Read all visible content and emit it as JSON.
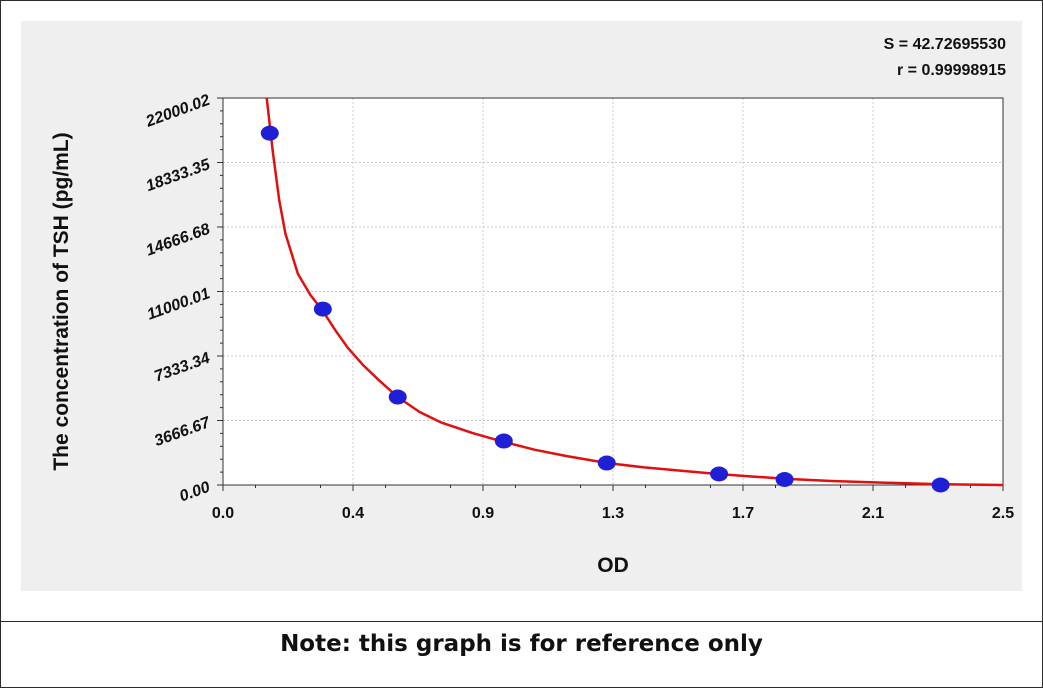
{
  "chart_data": {
    "type": "scatter",
    "xlabel": "OD",
    "ylabel": "The concentration of TSH (pg/mL)",
    "xlim": [
      0.0,
      2.5
    ],
    "ylim": [
      0.0,
      22000.02
    ],
    "x_ticks": [
      "0.0",
      "0.4",
      "0.9",
      "1.3",
      "1.7",
      "2.1",
      "2.5"
    ],
    "y_ticks": [
      "0.00",
      "3666.67",
      "7333.34",
      "11000.01",
      "14666.68",
      "18333.35",
      "22000.02"
    ],
    "grid": true,
    "annotations": [
      "S = 42.72695530",
      "r = 0.99998915"
    ],
    "series": [
      {
        "type": "scatter",
        "x": [
          0.15,
          0.32,
          0.56,
          0.9,
          1.23,
          1.59,
          1.8,
          2.3
        ],
        "y": [
          20000,
          10000,
          5000,
          2500,
          1250,
          625,
          312.5,
          0
        ],
        "color": "#1f1fd6"
      },
      {
        "type": "line",
        "x": [
          0.14,
          0.16,
          0.18,
          0.2,
          0.24,
          0.28,
          0.32,
          0.36,
          0.4,
          0.45,
          0.5,
          0.56,
          0.63,
          0.7,
          0.8,
          0.9,
          1.0,
          1.1,
          1.23,
          1.35,
          1.5,
          1.59,
          1.7,
          1.8,
          1.95,
          2.1,
          2.3,
          2.5
        ],
        "y": [
          22000,
          18900,
          16200,
          14300,
          12000,
          10800,
          9900,
          8800,
          7800,
          6800,
          5950,
          5000,
          4150,
          3550,
          2950,
          2450,
          2000,
          1650,
          1250,
          1000,
          760,
          620,
          480,
          360,
          230,
          140,
          40,
          0
        ],
        "color": "#e01010"
      }
    ]
  },
  "footer": {
    "note": "Note: this graph is for reference only"
  }
}
